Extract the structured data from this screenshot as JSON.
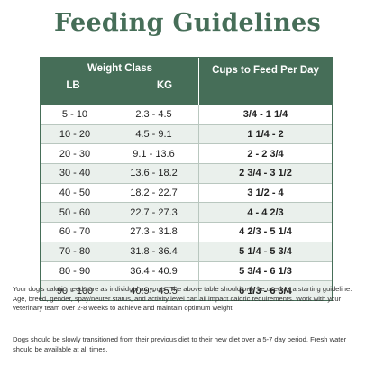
{
  "title": "Feeding Guidelines",
  "header": {
    "weight_class": "Weight Class",
    "lb": "LB",
    "kg": "KG",
    "cups": "Cups to Feed Per Day"
  },
  "rows": [
    {
      "lb": "5 - 10",
      "kg": "2.3 - 4.5",
      "cups": "3/4 - 1 1/4"
    },
    {
      "lb": "10 - 20",
      "kg": "4.5 - 9.1",
      "cups": "1 1/4 - 2"
    },
    {
      "lb": "20 - 30",
      "kg": "9.1 - 13.6",
      "cups": "2 - 2 3/4"
    },
    {
      "lb": "30 - 40",
      "kg": "13.6 - 18.2",
      "cups": "2 3/4 - 3 1/2"
    },
    {
      "lb": "40 - 50",
      "kg": "18.2 - 22.7",
      "cups": "3 1/2 - 4"
    },
    {
      "lb": "50 - 60",
      "kg": "22.7 - 27.3",
      "cups": "4 - 4 2/3"
    },
    {
      "lb": "60 - 70",
      "kg": "27.3 - 31.8",
      "cups": "4 2/3 - 5 1/4"
    },
    {
      "lb": "70 - 80",
      "kg": "31.8 - 36.4",
      "cups": "5 1/4 - 5 3/4"
    },
    {
      "lb": "80 - 90",
      "kg": "36.4 - 40.9",
      "cups": "5 3/4 - 6 1/3"
    },
    {
      "lb": "90 - 100",
      "kg": "40.9 - 45.5",
      "cups": "6 1/3 - 6 3/4"
    }
  ],
  "notes": {
    "caloric": "Your dog's caloric needs are as individual as yours. The above table should only be used as a starting guideline. Age, breed, gender, spay/neuter status, and activity level can all impact caloric requirements. Work with your veterinary team over 2-8 weeks to achieve and maintain optimum weight.",
    "transition": "Dogs should be slowly transitioned from their previous diet to their new diet over a 5-7 day period. Fresh water should be available at all times."
  }
}
